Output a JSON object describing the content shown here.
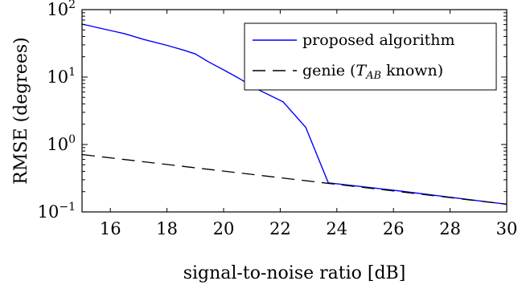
{
  "chart_data": {
    "type": "line",
    "xlabel": "signal-to-noise ratio [dB]",
    "ylabel": "RMSE (degrees)",
    "xlim": [
      15,
      30
    ],
    "ylim": [
      0.1,
      100
    ],
    "yscale": "log",
    "grid": false,
    "legend_position": "top-right",
    "x_ticks": [
      16,
      18,
      20,
      22,
      24,
      26,
      28,
      30
    ],
    "y_ticks": [
      {
        "value": 0.1,
        "base": "10",
        "exp": "−1"
      },
      {
        "value": 1,
        "base": "10",
        "exp": "0"
      },
      {
        "value": 10,
        "base": "10",
        "exp": "1"
      },
      {
        "value": 100,
        "base": "10",
        "exp": "2"
      }
    ],
    "series": [
      {
        "name": "proposed algorithm",
        "color": "#0000ff",
        "style": "solid",
        "x": [
          15,
          16,
          16.5,
          17.2,
          18,
          18.6,
          19,
          19.5,
          20,
          20.5,
          21.2,
          22.1,
          22.9,
          23.7,
          24,
          26,
          28,
          30
        ],
        "y": [
          61,
          49,
          44,
          36,
          29.5,
          25,
          22,
          16.5,
          12.8,
          9.8,
          6.6,
          4.3,
          1.8,
          0.27,
          0.262,
          0.21,
          0.165,
          0.13
        ]
      },
      {
        "name": "genie (T_AB known)",
        "name_parts": {
          "before": "genie (",
          "symbol": "T",
          "subscript": "AB",
          "after": " known)"
        },
        "color": "#000000",
        "style": "dashed",
        "x": [
          15,
          30
        ],
        "y": [
          0.71,
          0.13
        ]
      }
    ]
  }
}
